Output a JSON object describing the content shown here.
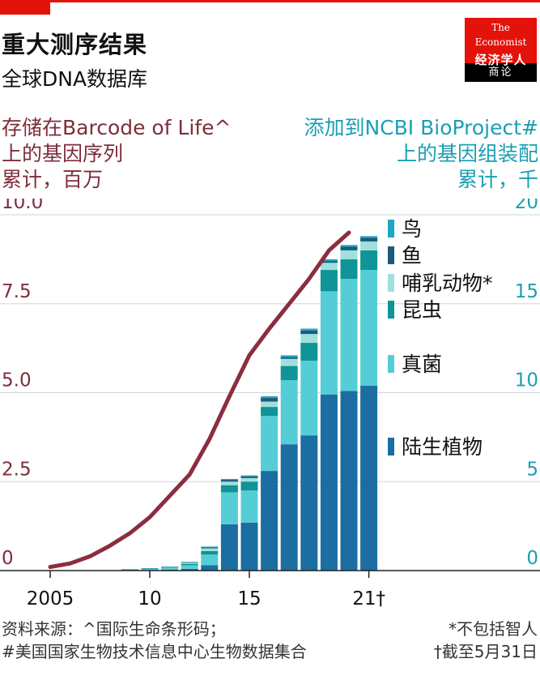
{
  "header": {
    "title": "重大测序结果",
    "subtitle": "全球DNA数据库"
  },
  "logo": {
    "line1": "The",
    "line2": "Economist",
    "cn": "经济学人",
    "bottom": "商论"
  },
  "axis_left_heading": [
    "存储在Barcode of Life^",
    "上的基因序列",
    "累计，百万"
  ],
  "axis_right_heading": [
    "添加到NCBI BioProject#",
    "上的基因组装配",
    "累计，千"
  ],
  "footer": {
    "source_line1": "资料来源：^国际生命条形码；",
    "source_line2": "#美国国家生物技术信息中心生物数据集合",
    "note1": "*不包括智人",
    "note2": "†截至5月31日"
  },
  "colors": {
    "line": "#8c2d3f",
    "birds": "#1fa7c2",
    "fish": "#1d5a7d",
    "mammals": "#9fe0dd",
    "insects": "#0f9497",
    "fungi": "#55cdd7",
    "plants": "#1c6da1",
    "grid": "#cfd6da"
  },
  "chart_data": {
    "type": "bar",
    "x": [
      2005,
      2006,
      2007,
      2008,
      2009,
      2010,
      2011,
      2012,
      2013,
      2014,
      2015,
      2016,
      2017,
      2018,
      2019,
      2020,
      2021
    ],
    "x_tick_labels": [
      "2005",
      "10",
      "15",
      "21†"
    ],
    "x_tick_values": [
      2005,
      2010,
      2015,
      2021
    ],
    "left_axis": {
      "ylim": [
        0,
        10
      ],
      "ticks": [
        "0",
        "2.5",
        "5.0",
        "7.5",
        "10.0"
      ],
      "tick_values": [
        0,
        2.5,
        5,
        7.5,
        10
      ]
    },
    "right_axis": {
      "ylim": [
        0,
        20
      ],
      "ticks": [
        "0",
        "5",
        "10",
        "15",
        "20"
      ],
      "tick_values": [
        0,
        5,
        10,
        15,
        20
      ]
    },
    "line_series": {
      "axis": "left",
      "values": [
        0.1,
        0.2,
        0.4,
        0.7,
        1.05,
        1.5,
        2.1,
        2.7,
        3.7,
        4.9,
        6.05,
        6.8,
        7.5,
        8.2,
        9.0,
        9.5,
        null
      ]
    },
    "bar_series": [
      {
        "name": "陆生植物",
        "axis": "right",
        "values": [
          0,
          0,
          0,
          0,
          0.02,
          0.03,
          0.06,
          0.1,
          0.3,
          2.6,
          2.7,
          5.6,
          7.1,
          7.6,
          9.9,
          10.1,
          10.4
        ]
      },
      {
        "name": "真菌",
        "axis": "right",
        "values": [
          0,
          0,
          0,
          0,
          0.02,
          0.04,
          0.08,
          0.2,
          0.6,
          1.8,
          1.8,
          3.1,
          3.6,
          4.2,
          5.8,
          6.3,
          6.5
        ]
      },
      {
        "name": "昆虫",
        "axis": "right",
        "values": [
          0,
          0,
          0,
          0,
          0.01,
          0.02,
          0.03,
          0.08,
          0.2,
          0.4,
          0.5,
          0.5,
          0.8,
          1.0,
          1.2,
          1.1,
          1.1
        ]
      },
      {
        "name": "哺乳动物*",
        "axis": "right",
        "values": [
          0,
          0,
          0,
          0,
          0.01,
          0.02,
          0.02,
          0.06,
          0.15,
          0.2,
          0.2,
          0.3,
          0.4,
          0.5,
          0.4,
          0.5,
          0.5
        ]
      },
      {
        "name": "鱼",
        "axis": "right",
        "values": [
          0,
          0,
          0,
          0,
          0.01,
          0.01,
          0.02,
          0.03,
          0.06,
          0.1,
          0.1,
          0.2,
          0.1,
          0.2,
          0.1,
          0.2,
          0.2
        ]
      },
      {
        "name": "鸟",
        "axis": "right",
        "values": [
          0,
          0,
          0,
          0,
          0,
          0.01,
          0.01,
          0.02,
          0.04,
          0.05,
          0.05,
          0.1,
          0.1,
          0.1,
          0.1,
          0.1,
          0.1
        ]
      }
    ],
    "legend": [
      "鸟",
      "鱼",
      "哺乳动物*",
      "昆虫",
      "真菌",
      "陆生植物"
    ],
    "legend_placement": "right",
    "grid": true
  }
}
